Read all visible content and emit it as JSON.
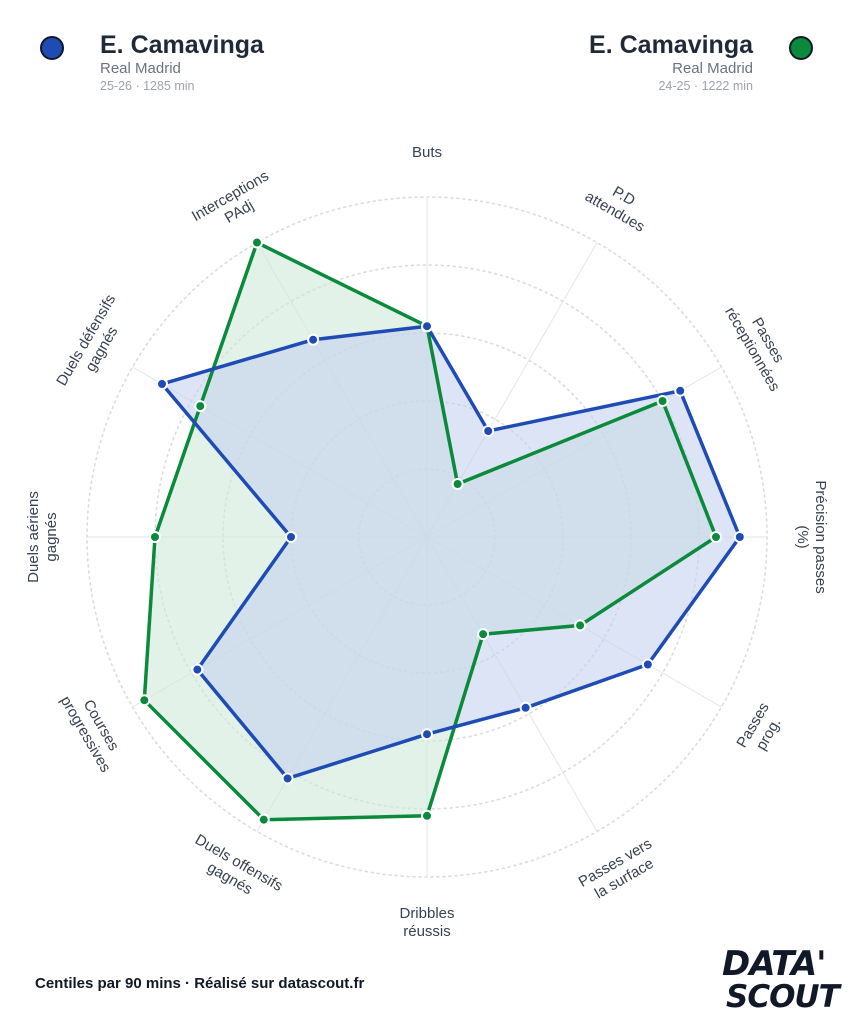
{
  "players": [
    {
      "name": "E. Camavinga",
      "team": "Real Madrid",
      "meta": "25-26 · 1285 min",
      "color": "#1f4bb5"
    },
    {
      "name": "E. Camavinga",
      "team": "Real Madrid",
      "meta": "24-25 · 1222 min",
      "color": "#0b8a3c"
    }
  ],
  "footer": "Centiles par 90 mins · Réalisé sur datascout.fr",
  "logo": {
    "line1": "DATA'",
    "line2": "SCOUT"
  },
  "chart_data": {
    "type": "radar",
    "rmax": 100,
    "grid_rings": [
      20,
      40,
      60,
      80,
      100
    ],
    "axes": [
      "Buts",
      "P.D attendues",
      "Passes réceptionnées",
      "Précision passes (%)",
      "Passes prog.",
      "Passes vers la surface",
      "Dribbles réussis",
      "Duels offensifs gagnés",
      "Courses progressives",
      "Duels aériens gagnés",
      "Duels défensifs gagnés",
      "Interceptions PAdj"
    ],
    "axis_labels": [
      [
        "Buts"
      ],
      [
        "P.D",
        "attendues"
      ],
      [
        "Passes",
        "réceptionnées"
      ],
      [
        "Précision passes",
        "(%)"
      ],
      [
        "Passes",
        "prog."
      ],
      [
        "Passes vers",
        "la surface"
      ],
      [
        "Dribbles",
        "réussis"
      ],
      [
        "Duels offensifs",
        "gagnés"
      ],
      [
        "Courses",
        "progressives"
      ],
      [
        "Duels aériens",
        "gagnés"
      ],
      [
        "Duels défensifs",
        "gagnés"
      ],
      [
        "Interceptions",
        "PAdj"
      ]
    ],
    "series": [
      {
        "name": "E. Camavinga 25-26",
        "color": "#1f4bb5",
        "fill": "#c7d2ee",
        "values": [
          62,
          36,
          86,
          92,
          75,
          58,
          58,
          82,
          78,
          40,
          90,
          67
        ]
      },
      {
        "name": "E. Camavinga 24-25",
        "color": "#0b8a3c",
        "fill": "#cfe9d8",
        "values": [
          62,
          18,
          80,
          85,
          52,
          33,
          82,
          96,
          96,
          80,
          77,
          100
        ]
      }
    ]
  }
}
